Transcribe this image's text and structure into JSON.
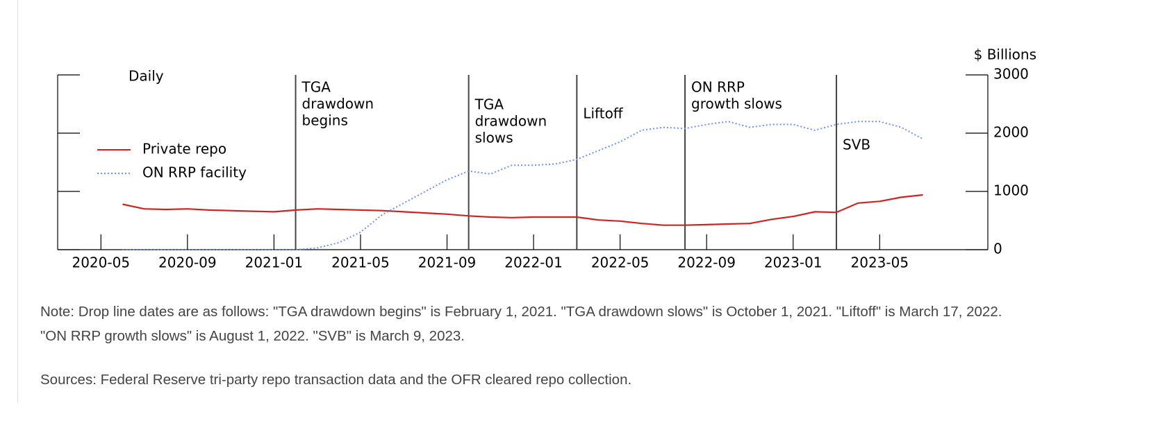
{
  "chart_data": {
    "type": "line",
    "frequency_label": "Daily",
    "y2_label": "$ Billions",
    "x": [
      "2020-06",
      "2020-07",
      "2020-08",
      "2020-09",
      "2020-10",
      "2020-11",
      "2020-12",
      "2021-01",
      "2021-02",
      "2021-03",
      "2021-04",
      "2021-05",
      "2021-06",
      "2021-07",
      "2021-08",
      "2021-09",
      "2021-10",
      "2021-11",
      "2021-12",
      "2022-01",
      "2022-02",
      "2022-03",
      "2022-04",
      "2022-05",
      "2022-06",
      "2022-07",
      "2022-08",
      "2022-09",
      "2022-10",
      "2022-11",
      "2022-12",
      "2023-01",
      "2023-02",
      "2023-03",
      "2023-04",
      "2023-05",
      "2023-06",
      "2023-07"
    ],
    "series": [
      {
        "name": "Private repo",
        "color": "#d62020",
        "style": "solid",
        "axis": "y2",
        "values": [
          780,
          700,
          690,
          700,
          680,
          670,
          660,
          650,
          680,
          700,
          690,
          680,
          670,
          650,
          630,
          610,
          580,
          560,
          550,
          560,
          560,
          560,
          510,
          490,
          450,
          420,
          420,
          430,
          440,
          450,
          520,
          570,
          650,
          640,
          800,
          830,
          900,
          940
        ]
      },
      {
        "name": "ON RRP facility",
        "color": "#6a8fff",
        "style": "dotted",
        "axis": "y2",
        "values": [
          0,
          0,
          0,
          0,
          0,
          0,
          0,
          0,
          0,
          30,
          120,
          300,
          600,
          800,
          1000,
          1200,
          1350,
          1300,
          1450,
          1450,
          1470,
          1550,
          1700,
          1850,
          2050,
          2100,
          2080,
          2150,
          2200,
          2100,
          2150,
          2150,
          2050,
          2150,
          2200,
          2200,
          2100,
          1900
        ]
      }
    ],
    "xlim": [
      "2020-03",
      "2023-10"
    ],
    "xticks": [
      "2020-05",
      "2020-09",
      "2021-01",
      "2021-05",
      "2021-09",
      "2022-01",
      "2022-05",
      "2022-09",
      "2023-01",
      "2023-05"
    ],
    "y2lim": [
      0,
      3000
    ],
    "y2ticks": [
      0,
      1000,
      2000,
      3000
    ],
    "legend": "upper left",
    "annotations": [
      {
        "x": "2021-02",
        "lines": [
          "TGA",
          "drawdown",
          "begins"
        ]
      },
      {
        "x": "2021-10",
        "lines": [
          "TGA",
          "drawdown",
          "slows"
        ]
      },
      {
        "x": "2022-03",
        "lines": [
          "Liftoff"
        ]
      },
      {
        "x": "2022-08",
        "lines": [
          "ON RRP",
          "growth slows"
        ]
      },
      {
        "x": "2023-03",
        "lines": [
          "SVB"
        ]
      }
    ]
  },
  "note": "Note: Drop line dates are as follows: \"TGA drawdown begins\" is February 1, 2021. \"TGA drawdown slows\" is October 1, 2021. \"Liftoff\" is March 17, 2022. \"ON RRP growth slows\" is August 1, 2022. \"SVB\" is March 9, 2023.",
  "sources": "Sources: Federal Reserve tri-party repo transaction data and the OFR cleared repo collection."
}
